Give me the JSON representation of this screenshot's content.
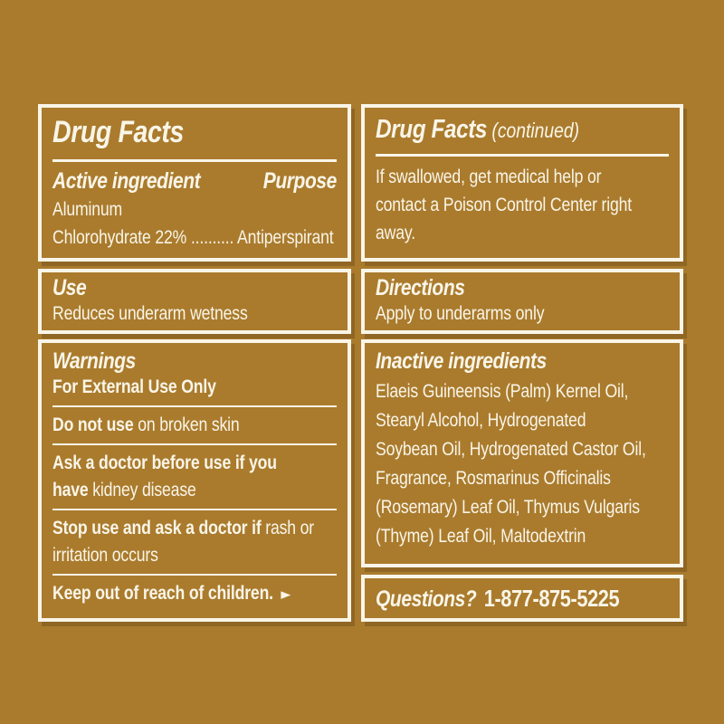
{
  "page": {
    "background_color": "#aa7b2d",
    "panel_color": "#f9f5e8"
  },
  "left": {
    "drug_facts": {
      "title": "Drug Facts"
    },
    "active": {
      "heading": "Active ingredient",
      "purpose_heading": "Purpose",
      "text": "Aluminum\nChlorohydrate 22% .......... Antiperspirant"
    },
    "use": {
      "heading": "Use",
      "text": "Reduces underarm wetness"
    },
    "warnings": {
      "heading": "Warnings",
      "external": "For External Use Only",
      "items": [
        {
          "bold": "Do not use",
          "rest": " on broken skin"
        },
        {
          "bold": "Ask a doctor before use if you\nhave",
          "rest": " kidney disease"
        },
        {
          "bold": "Stop use and ask a doctor if",
          "rest": " rash or\nirritation occurs"
        }
      ],
      "keep_out": "Keep out of reach of children.",
      "arrow_icon": "►"
    }
  },
  "right": {
    "continued": {
      "title": "Drug Facts",
      "suffix": " (continued)",
      "text": "If swallowed, get medical help or\ncontact a Poison Control Center right\naway."
    },
    "directions": {
      "heading": "Directions",
      "text": "Apply to underarms only"
    },
    "inactive": {
      "heading": "Inactive ingredients",
      "text": "Elaeis Guineensis (Palm) Kernel Oil,\nStearyl Alcohol, Hydrogenated\nSoybean Oil, Hydrogenated Castor Oil,\nFragrance, Rosmarinus Officinalis\n(Rosemary) Leaf Oil, Thymus Vulgaris\n(Thyme) Leaf Oil, Maltodextrin"
    },
    "questions": {
      "heading": "Questions?",
      "phone": "1-877-875-5225"
    }
  }
}
